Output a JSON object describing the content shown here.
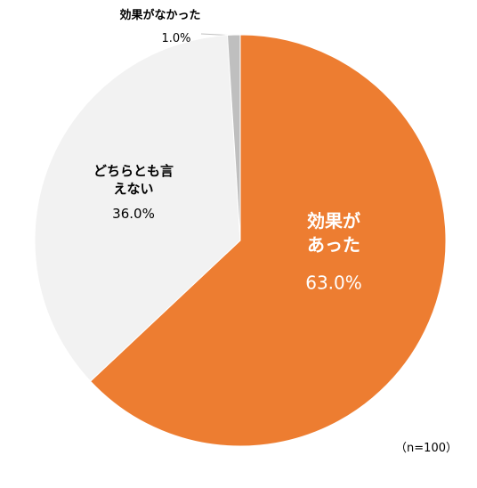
{
  "chart_data": {
    "type": "pie",
    "categories": [
      "効果が\nあった",
      "どちらとも言\nえない",
      "効果がなかった"
    ],
    "values": [
      63.0,
      36.0,
      1.0
    ],
    "value_labels": [
      "63.0%",
      "36.0%",
      "1.0%"
    ],
    "colors": [
      "#ED7D31",
      "#F2F2F2",
      "#BFBFBF"
    ],
    "annotation": "（n=100）"
  }
}
